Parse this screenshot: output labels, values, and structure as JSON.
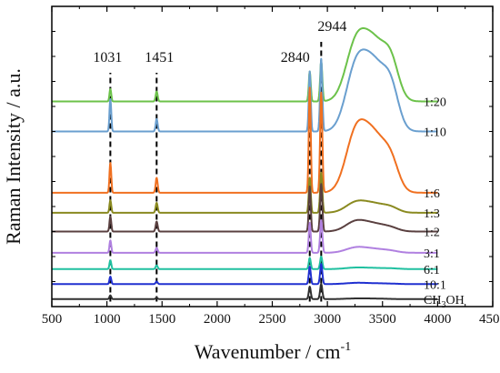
{
  "chart_data": {
    "type": "line",
    "xlabel_main": "Wavenumber / cm",
    "xlabel_sup": "-1",
    "ylabel": "Raman Intensity / a.u.",
    "xlim": [
      500,
      4500
    ],
    "xticks": [
      "500",
      "1000",
      "1500",
      "2000",
      "2500",
      "3000",
      "3500",
      "4000",
      "4500"
    ],
    "peaks": [
      {
        "x": 1031,
        "label": "1031"
      },
      {
        "x": 1451,
        "label": "1451"
      },
      {
        "x": 2840,
        "label": "2840"
      },
      {
        "x": 2944,
        "label": "2944"
      }
    ],
    "series": [
      {
        "name": "1:20",
        "color": "#6cc24a",
        "offset": 8.2,
        "peaks": [
          0.5,
          0.4,
          1.2,
          1.6
        ],
        "oh": [
          1.9,
          2.3,
          1.2
        ]
      },
      {
        "name": "1:10",
        "color": "#6a9fcf",
        "offset": 7.0,
        "peaks": [
          1.3,
          0.5,
          2.4,
          2.9
        ],
        "oh": [
          2.1,
          2.6,
          1.3
        ]
      },
      {
        "name": "1:6",
        "color": "#f07020",
        "offset": 4.55,
        "peaks": [
          1.2,
          0.6,
          4.2,
          4.0
        ],
        "oh": [
          2.0,
          2.2,
          0.9
        ]
      },
      {
        "name": "1:3",
        "color": "#8a8a20",
        "offset": 3.75,
        "peaks": [
          0.5,
          0.4,
          1.4,
          1.6
        ],
        "oh": [
          0.35,
          0.35,
          0.15
        ]
      },
      {
        "name": "1:2",
        "color": "#5a4040",
        "offset": 3.0,
        "peaks": [
          0.6,
          0.4,
          1.8,
          1.9
        ],
        "oh": [
          0.35,
          0.3,
          0.1
        ]
      },
      {
        "name": "3:1",
        "color": "#b080e0",
        "offset": 2.15,
        "peaks": [
          0.5,
          0.2,
          1.2,
          1.3
        ],
        "oh": [
          0.18,
          0.15,
          0.05
        ]
      },
      {
        "name": "6:1",
        "color": "#20c0a0",
        "offset": 1.5,
        "peaks": [
          0.35,
          0.15,
          0.45,
          0.5
        ],
        "oh": [
          0.05,
          0.04,
          0.02
        ]
      },
      {
        "name": "10:1",
        "color": "#2030d0",
        "offset": 0.9,
        "peaks": [
          0.3,
          0.1,
          0.7,
          0.8
        ],
        "oh": [
          0.04,
          0.03,
          0.01
        ]
      },
      {
        "name": "CH",
        "sub": "3",
        "tail": "OH",
        "color": "#303030",
        "offset": 0.3,
        "peaks": [
          0.15,
          0.05,
          0.5,
          0.6
        ],
        "oh": [
          0.02,
          0.02,
          0.0
        ]
      }
    ]
  }
}
